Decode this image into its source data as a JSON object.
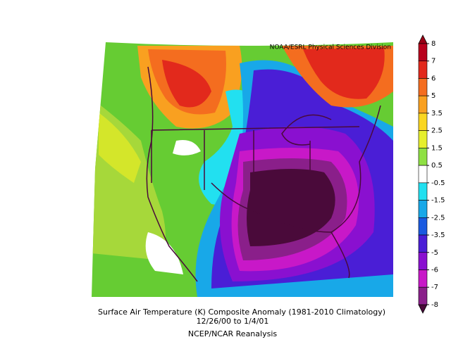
{
  "source": "NOAA/ESRL Physical Sciences Division",
  "caption": {
    "title": "Surface Air Temperature (K) Composite Anomaly (1981-2010 Climatology)",
    "dates": "12/26/00  to 1/4/01",
    "dataset": "NCEP/NCAR Reanalysis"
  },
  "colorbar": {
    "ticks": [
      8,
      7,
      6,
      5,
      3.5,
      2.5,
      1.5,
      0.5,
      -0.5,
      -1.5,
      -2.5,
      -3.5,
      -5,
      -6,
      -7,
      -8
    ],
    "colors": [
      "#b8001c",
      "#e2291c",
      "#f46d1f",
      "#f9a020",
      "#fad620",
      "#e6ef2d",
      "#8ee043",
      "#ffffff",
      "#22e0f0",
      "#18a8e8",
      "#1a5ae0",
      "#4a1ed6",
      "#8a10d0",
      "#c818c8",
      "#8a1f8a"
    ],
    "over_color": "#9a0016",
    "under_color": "#4a0a3a"
  }
}
